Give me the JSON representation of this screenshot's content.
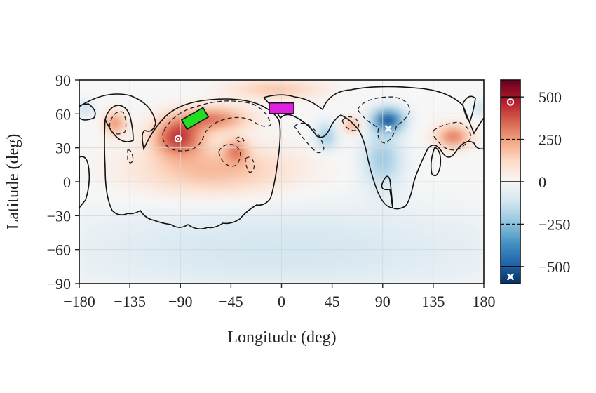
{
  "chart_data": {
    "type": "heatmap",
    "xlabel": "Longitude (deg)",
    "ylabel": "Latitude (deg)",
    "xlim": [
      -180,
      180
    ],
    "ylim": [
      -90,
      90
    ],
    "xticks": [
      -180,
      -135,
      -90,
      -45,
      0,
      45,
      90,
      135,
      180
    ],
    "yticks": [
      -90,
      -60,
      -30,
      0,
      30,
      60,
      90
    ],
    "grid": true,
    "colorbar": {
      "range": [
        -600,
        600
      ],
      "ticks": [
        500,
        250,
        0,
        -250,
        -500
      ],
      "dashed_ticks": [
        250,
        -250
      ],
      "colormap": [
        "#053061",
        "#2166ac",
        "#4393c3",
        "#92c5de",
        "#d1e5f0",
        "#f7f7f7",
        "#fddbc7",
        "#f4a582",
        "#d6604d",
        "#b2182b",
        "#67001f"
      ],
      "max_marker_value": 470,
      "min_marker_value": -560
    },
    "contour_levels": {
      "solid": [
        0
      ],
      "dashed": [
        -250,
        250
      ]
    },
    "blobs": [
      {
        "lon": -92,
        "lat": 40,
        "value": 420,
        "rlon": 22,
        "rlat": 16
      },
      {
        "lon": -60,
        "lat": 56,
        "value": 320,
        "rlon": 30,
        "rlat": 10
      },
      {
        "lon": -148,
        "lat": 52,
        "value": 300,
        "rlon": 9,
        "rlat": 10
      },
      {
        "lon": -40,
        "lat": 28,
        "value": 260,
        "rlon": 10,
        "rlat": 10
      },
      {
        "lon": -60,
        "lat": 10,
        "value": 200,
        "rlon": 70,
        "rlat": 22
      },
      {
        "lon": 153,
        "lat": 40,
        "value": 330,
        "rlon": 15,
        "rlat": 10
      },
      {
        "lon": 63,
        "lat": 50,
        "value": 270,
        "rlon": 8,
        "rlat": 6
      },
      {
        "lon": -5,
        "lat": 82,
        "value": 180,
        "rlon": 40,
        "rlat": 8
      },
      {
        "lon": 95,
        "lat": 55,
        "value": -520,
        "rlon": 14,
        "rlat": 10
      },
      {
        "lon": 90,
        "lat": 20,
        "value": -220,
        "rlon": 18,
        "rlat": 25
      },
      {
        "lon": 40,
        "lat": 40,
        "value": -230,
        "rlon": 10,
        "rlat": 12
      },
      {
        "lon": -175,
        "lat": 65,
        "value": -170,
        "rlon": 8,
        "rlat": 6
      },
      {
        "lon": 178,
        "lat": 65,
        "value": -170,
        "rlon": 6,
        "rlat": 6
      },
      {
        "lon": 0,
        "lat": -60,
        "value": -110,
        "rlon": 200,
        "rlat": 40
      }
    ],
    "markers": [
      {
        "kind": "max",
        "lon": -92,
        "lat": 38,
        "color": "#ffffff"
      },
      {
        "kind": "min",
        "lon": 95,
        "lat": 47,
        "color": "#ffffff"
      }
    ],
    "region_boxes": [
      {
        "lon_center": -77,
        "lat_center": 56,
        "angle_deg": -30,
        "length_deg": 22,
        "width_deg": 6,
        "color": "#22dd22"
      },
      {
        "lon_center": 0,
        "lat_center": 65,
        "angle_deg": 0,
        "length_deg": 22,
        "width_deg": 6,
        "color": "#dd22dd"
      }
    ]
  }
}
